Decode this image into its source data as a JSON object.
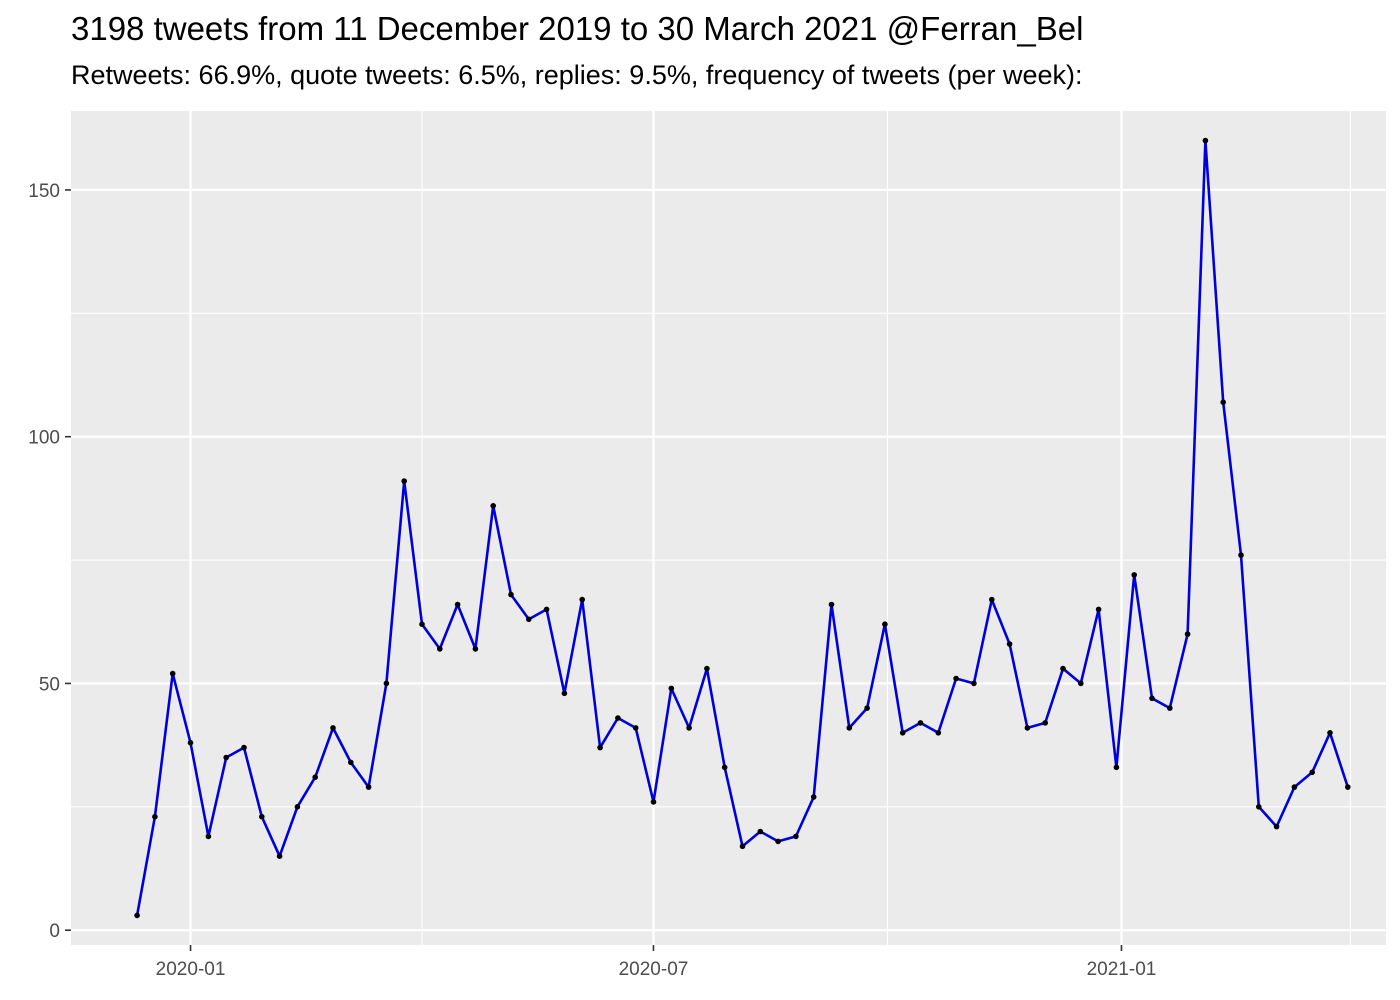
{
  "chart_data": {
    "type": "line",
    "title": "3198 tweets from 11 December 2019 to 30 March 2021 @Ferran_Bel",
    "subtitle": "Retweets: 66.9%, quote tweets: 6.5%, replies: 9.5%, frequency of tweets (per week):",
    "xlabel": "",
    "ylabel": "",
    "x_axis": {
      "type": "date",
      "range": [
        "2019-11-15",
        "2021-04-15"
      ],
      "ticks": [
        {
          "date": "2020-01-01",
          "label": "2020-01"
        },
        {
          "date": "2020-07-01",
          "label": "2020-07"
        },
        {
          "date": "2021-01-01",
          "label": "2021-01"
        }
      ],
      "minor_grid": [
        "2020-04-01",
        "2020-10-01",
        "2021-04-01"
      ]
    },
    "y_axis": {
      "range": [
        -3,
        166
      ],
      "ticks": [
        0,
        50,
        100,
        150
      ],
      "minor_grid": [
        25,
        75,
        125
      ]
    },
    "grid": true,
    "panel_background": "#ebebeb",
    "grid_color": "#ffffff",
    "line_color": "#0000dd",
    "point_color": "#000000",
    "series": [
      {
        "x": [
          "2019-12-11",
          "2019-12-18",
          "2019-12-25",
          "2020-01-01",
          "2020-01-08",
          "2020-01-15",
          "2020-01-22",
          "2020-01-29",
          "2020-02-05",
          "2020-02-12",
          "2020-02-19",
          "2020-02-26",
          "2020-03-04",
          "2020-03-11",
          "2020-03-18",
          "2020-03-25",
          "2020-04-01",
          "2020-04-08",
          "2020-04-15",
          "2020-04-22",
          "2020-04-29",
          "2020-05-06",
          "2020-05-13",
          "2020-05-20",
          "2020-05-27",
          "2020-06-03",
          "2020-06-10",
          "2020-06-17",
          "2020-06-24",
          "2020-07-01",
          "2020-07-08",
          "2020-07-15",
          "2020-07-22",
          "2020-07-29",
          "2020-08-05",
          "2020-08-12",
          "2020-08-19",
          "2020-08-26",
          "2020-09-02",
          "2020-09-09",
          "2020-09-16",
          "2020-09-23",
          "2020-09-30",
          "2020-10-07",
          "2020-10-14",
          "2020-10-21",
          "2020-10-28",
          "2020-11-04",
          "2020-11-11",
          "2020-11-18",
          "2020-11-25",
          "2020-12-02",
          "2020-12-09",
          "2020-12-16",
          "2020-12-23",
          "2020-12-30",
          "2021-01-06",
          "2021-01-13",
          "2021-01-20",
          "2021-01-27",
          "2021-02-03",
          "2021-02-10",
          "2021-02-17",
          "2021-02-24",
          "2021-03-03",
          "2021-03-10",
          "2021-03-17",
          "2021-03-24",
          "2021-03-31"
        ],
        "values": [
          3,
          23,
          52,
          38,
          19,
          35,
          37,
          23,
          15,
          25,
          31,
          41,
          34,
          29,
          50,
          91,
          62,
          57,
          66,
          57,
          86,
          68,
          63,
          65,
          48,
          67,
          37,
          43,
          41,
          26,
          49,
          41,
          53,
          33,
          17,
          20,
          18,
          19,
          27,
          66,
          41,
          45,
          62,
          40,
          42,
          40,
          51,
          50,
          67,
          58,
          41,
          42,
          53,
          50,
          65,
          33,
          72,
          47,
          45,
          60,
          160,
          107,
          76,
          25,
          21,
          29,
          32,
          40,
          29
        ]
      }
    ]
  }
}
